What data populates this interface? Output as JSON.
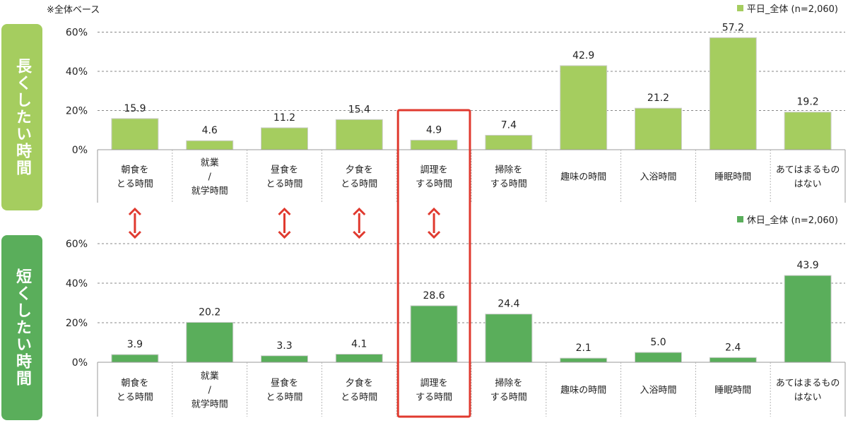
{
  "note": "※全体ベース",
  "side_labels": {
    "top": "長くしたい時間",
    "bottom": "短くしたい時間"
  },
  "colors": {
    "top_bar": "#a5cd5f",
    "bottom_bar": "#5aae5b",
    "highlight": "#e03a2f",
    "arrow": "#e03a2f",
    "grid": "#888888"
  },
  "categories": [
    [
      "朝食を",
      "とる時間"
    ],
    [
      "就業",
      "/",
      "就学時間"
    ],
    [
      "昼食を",
      "とる時間"
    ],
    [
      "夕食を",
      "とる時間"
    ],
    [
      "調理を",
      "する時間"
    ],
    [
      "掃除を",
      "する時間"
    ],
    [
      "趣味の時間"
    ],
    [
      "入浴時間"
    ],
    [
      "睡眠時間"
    ],
    [
      "あてはまるもの",
      "はない"
    ]
  ],
  "arrow_categories": [
    0,
    2,
    3,
    4
  ],
  "highlight_category": 4,
  "chart_data": [
    {
      "type": "bar",
      "series": [
        {
          "name": "平日_全体 (n=2,060)",
          "values": [
            15.9,
            4.6,
            11.2,
            15.4,
            4.9,
            7.4,
            42.9,
            21.2,
            57.2,
            19.2
          ]
        }
      ],
      "value_labels": [
        "15.9",
        "4.6",
        "11.2",
        "15.4",
        "4.9",
        "7.4",
        "42.9",
        "21.2",
        "57.2",
        "19.2"
      ],
      "yticks": [
        "0%",
        "20%",
        "40%",
        "60%"
      ],
      "ylim": [
        0,
        60
      ],
      "legend": "top-right",
      "grid": true
    },
    {
      "type": "bar",
      "series": [
        {
          "name": "休日_全体 (n=2,060)",
          "values": [
            3.9,
            20.2,
            3.3,
            4.1,
            28.6,
            24.4,
            2.1,
            5.0,
            2.4,
            43.9
          ]
        }
      ],
      "value_labels": [
        "3.9",
        "20.2",
        "3.3",
        "4.1",
        "28.6",
        "24.4",
        "2.1",
        "5.0",
        "2.4",
        "43.9"
      ],
      "yticks": [
        "0%",
        "20%",
        "40%",
        "60%"
      ],
      "ylim": [
        0,
        60
      ],
      "legend": "top-right",
      "grid": true
    }
  ]
}
